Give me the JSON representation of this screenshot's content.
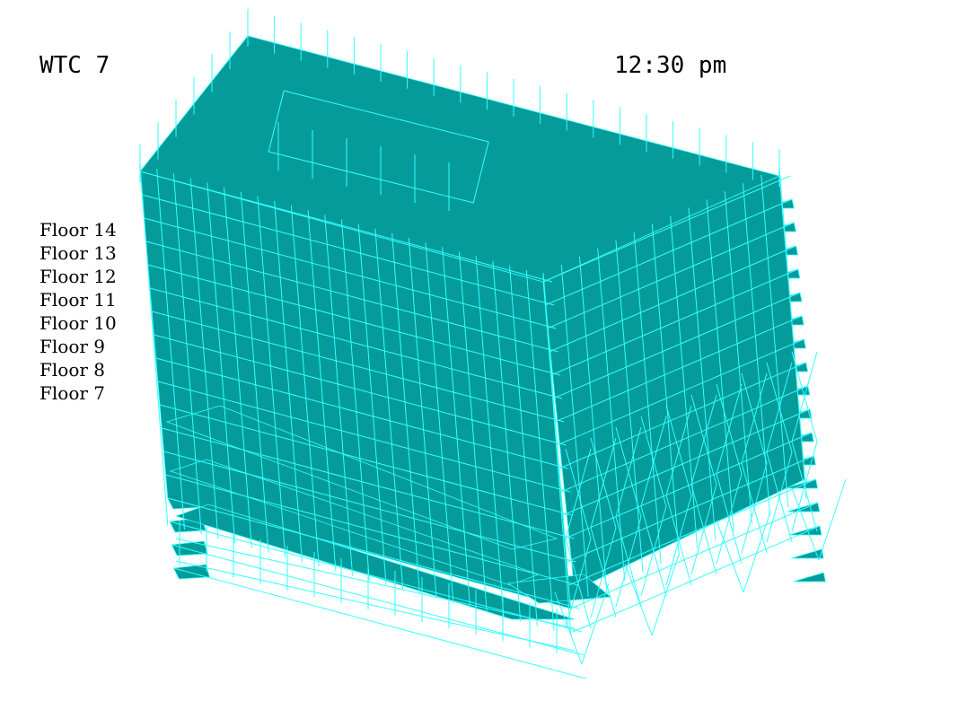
{
  "title": "WTC 7",
  "time": "12:30 pm",
  "floors": [
    "Floor 14",
    "Floor 13",
    "Floor 12",
    "Floor 11",
    "Floor 10",
    "Floor 9",
    "Floor 8",
    "Floor 7"
  ],
  "colors": {
    "slab": "#059b9b",
    "frame": "#33ffff",
    "background": "#ffffff",
    "text": "#000000"
  }
}
